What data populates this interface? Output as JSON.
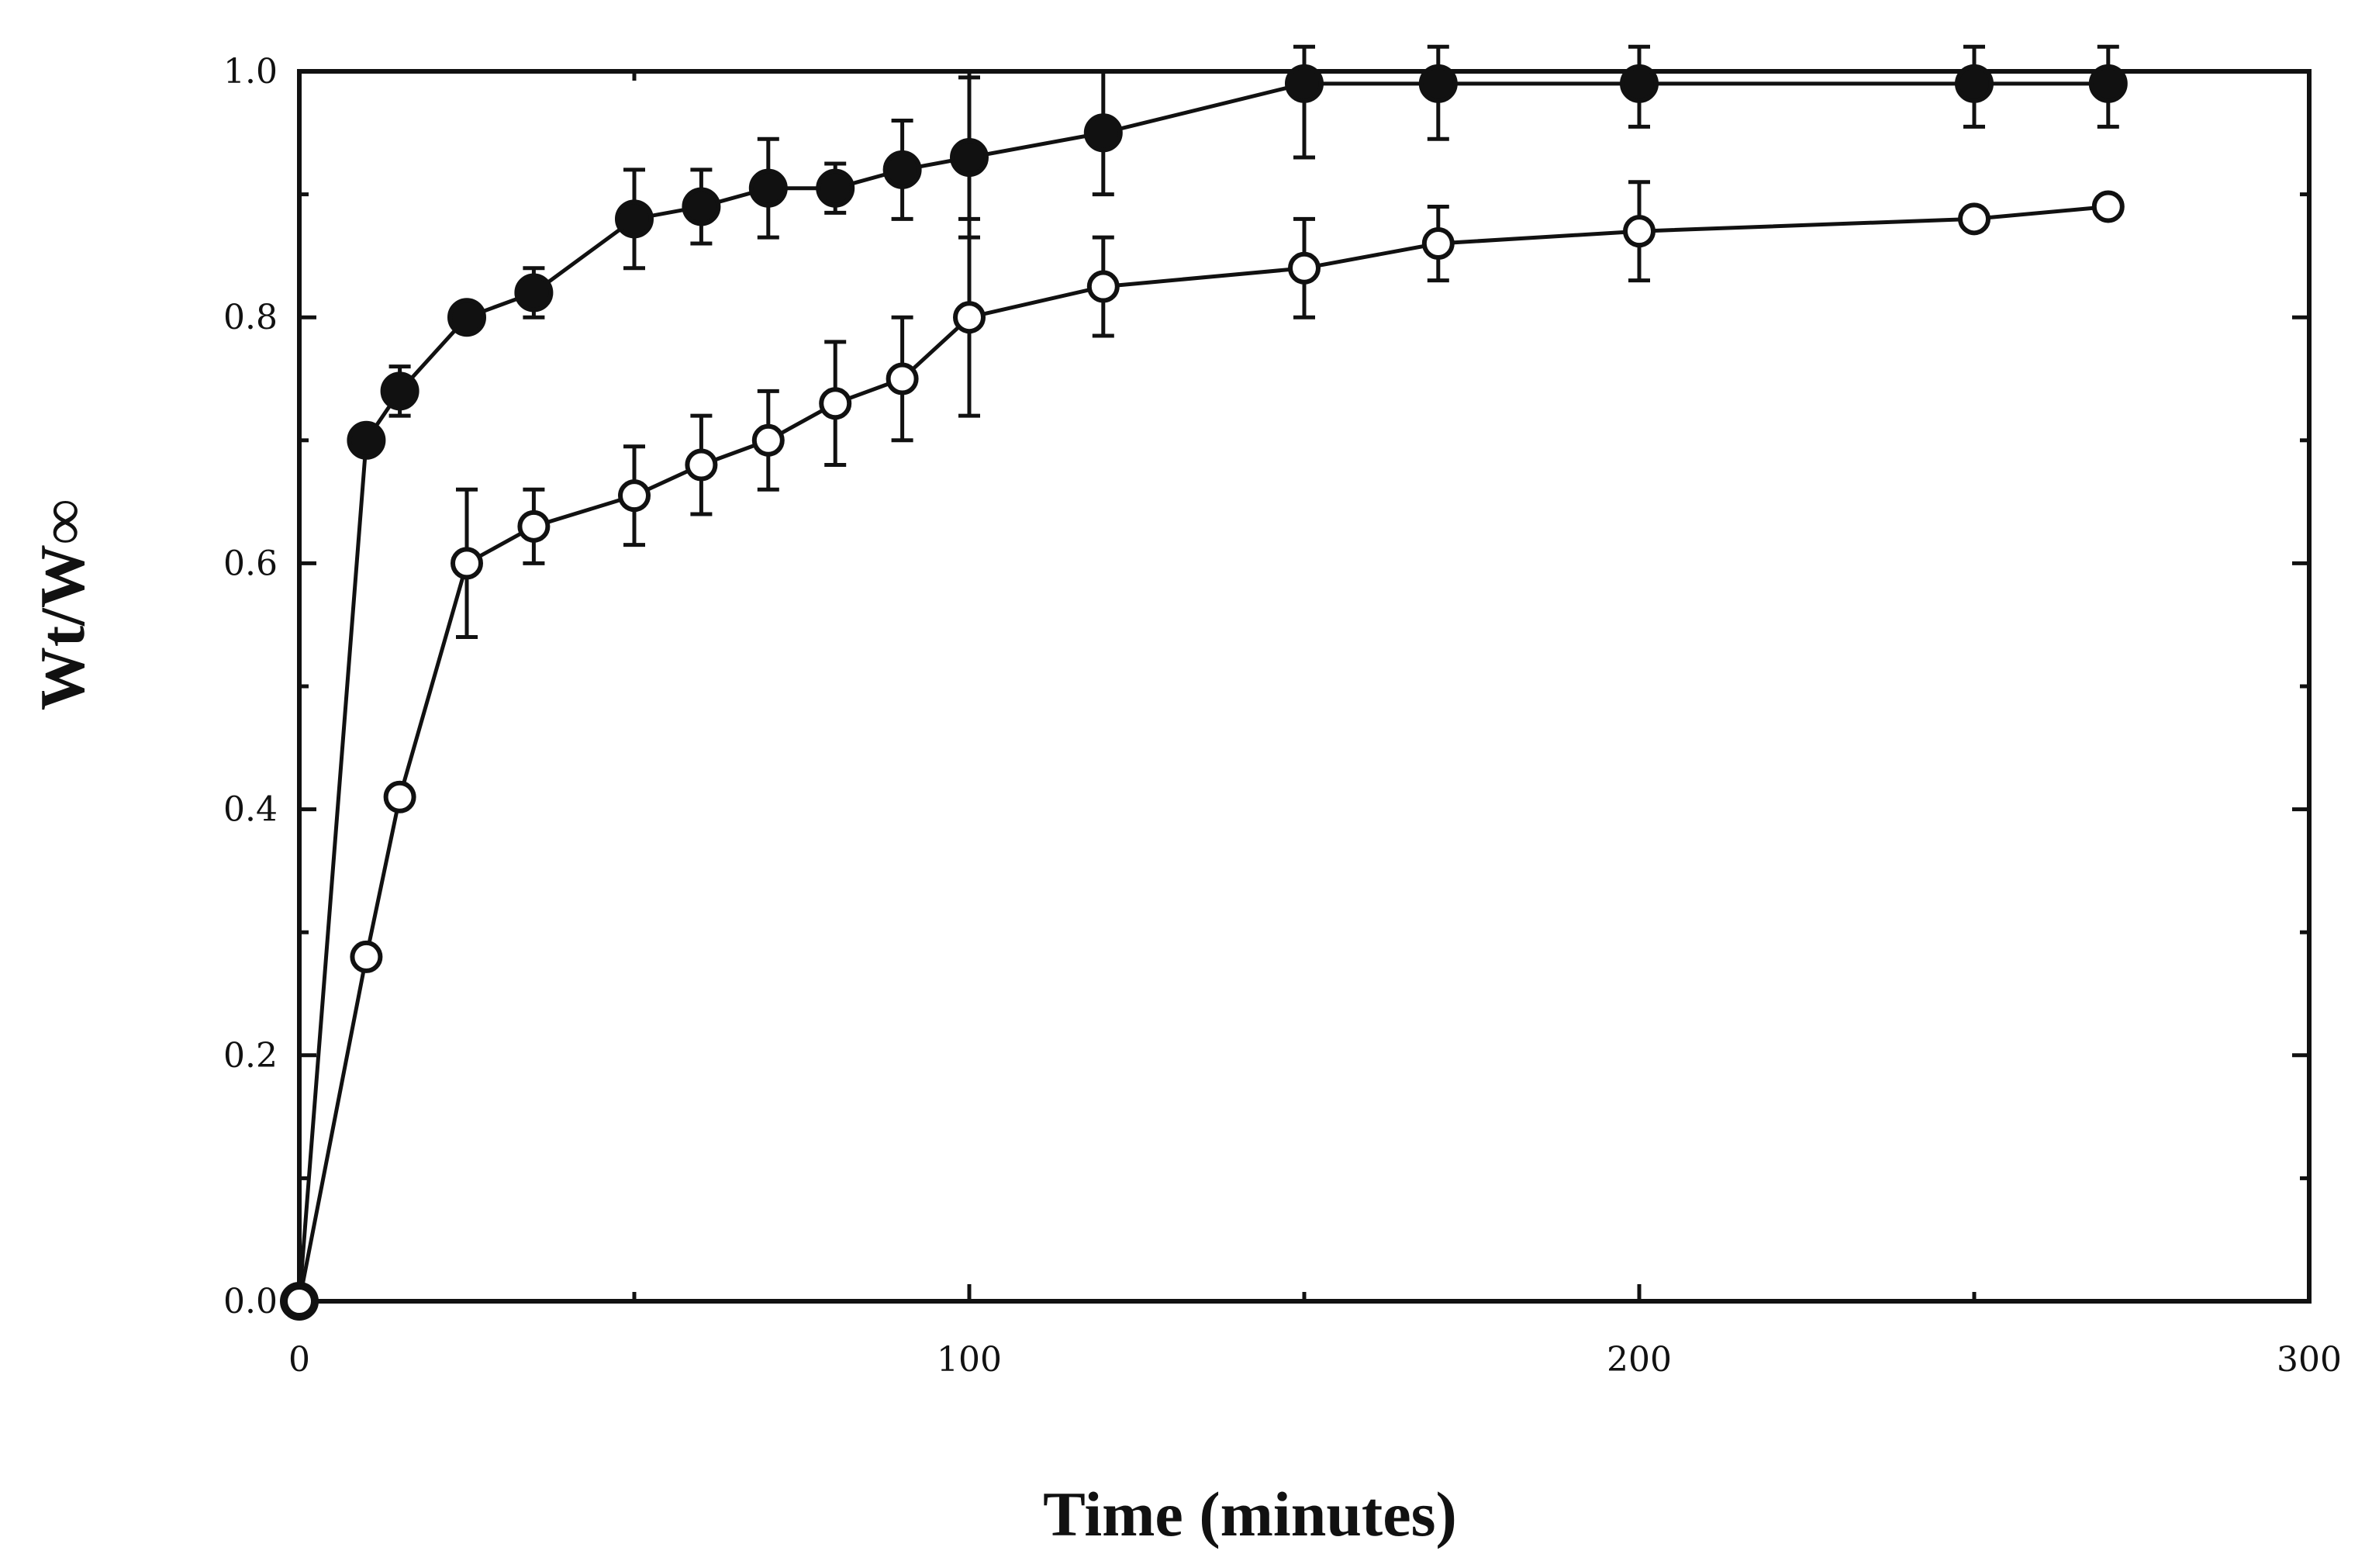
{
  "chart_data": {
    "type": "scatter",
    "title": "",
    "xlabel": "Time  (minutes)",
    "ylabel": "Wt/W∞",
    "xlim": [
      0,
      300
    ],
    "ylim": [
      0,
      1.0
    ],
    "x_ticks": [
      0,
      100,
      200,
      300
    ],
    "x_tick_labels": [
      "0",
      "100",
      "200",
      "300"
    ],
    "y_ticks": [
      0.0,
      0.2,
      0.4,
      0.6,
      0.8,
      1.0
    ],
    "y_tick_labels": [
      "0.0",
      "0.2",
      "0.4",
      "0.6",
      "0.8",
      "1.0"
    ],
    "grid": false,
    "series": [
      {
        "name": "filled circles",
        "marker": "filled-circle",
        "x": [
          0,
          10,
          15,
          25,
          35,
          50,
          60,
          70,
          80,
          90,
          100,
          120,
          150,
          170,
          200,
          250,
          270
        ],
        "y": [
          0.0,
          0.7,
          0.74,
          0.8,
          0.82,
          0.88,
          0.89,
          0.905,
          0.905,
          0.92,
          0.93,
          0.95,
          0.99,
          0.99,
          0.99,
          0.99,
          0.99
        ],
        "err": [
          0,
          0,
          0.02,
          0,
          0.02,
          0.04,
          0.03,
          0.04,
          0.02,
          0.04,
          0.065,
          0.05,
          0.06,
          0.045,
          0.035,
          0.035,
          0.035
        ]
      },
      {
        "name": "open circles",
        "marker": "open-circle",
        "x": [
          0,
          10,
          15,
          25,
          35,
          50,
          60,
          70,
          80,
          90,
          100,
          120,
          150,
          170,
          200,
          250,
          270
        ],
        "y": [
          0.0,
          0.28,
          0.41,
          0.6,
          0.63,
          0.655,
          0.68,
          0.7,
          0.73,
          0.75,
          0.8,
          0.825,
          0.84,
          0.86,
          0.87,
          0.88,
          0.89
        ],
        "err": [
          0,
          0,
          0,
          0.06,
          0.03,
          0.04,
          0.04,
          0.04,
          0.05,
          0.05,
          0.08,
          0.04,
          0.04,
          0.03,
          0.04,
          0,
          0
        ]
      }
    ]
  }
}
